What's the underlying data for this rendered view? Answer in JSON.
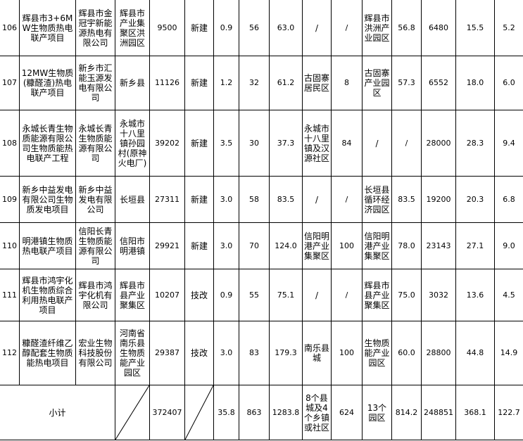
{
  "rows": [
    {
      "no": "106",
      "name": "辉县市3+6MW生物质热电联产项目",
      "company": "辉县市金冠宇新能源热电有限公司",
      "location": "辉县市产业集聚区洪洲园区",
      "c4": "9500",
      "type": "新建",
      "c6": "0.9",
      "c7": "56",
      "c8": "63.0",
      "c9": "/",
      "c10": "/",
      "c11": "辉县市洪洲产业园区",
      "c12": "56.8",
      "c13": "6480",
      "c14": "15.5",
      "c15": "5.2"
    },
    {
      "no": "107",
      "name": "12MW生物质(糠醛渣)热电联产项目",
      "company": "新乡市汇能玉源发电有限公司",
      "location": "新乡县",
      "c4": "11126",
      "type": "新建",
      "c6": "1.2",
      "c7": "32",
      "c8": "61.2",
      "c9": "古固寨居民区",
      "c10": "8",
      "c11": "古固寨产业园区",
      "c12": "57.3",
      "c13": "6552",
      "c14": "18.0",
      "c15": "6.0"
    },
    {
      "no": "108",
      "name": "永城长青生物质能源有限公司生物质能热电联产工程",
      "company": "永城长青生物质能源有限公司",
      "location": "永城市十八里镇孙园村(原神火电厂)",
      "c4": "39202",
      "type": "新建",
      "c6": "3.5",
      "c7": "30",
      "c8": "37.3",
      "c9": "永城市十八里镇及汉源社区",
      "c10": "84",
      "c11": "/",
      "c12": "/",
      "c13": "28000",
      "c14": "28.3",
      "c15": "9.4"
    },
    {
      "no": "109",
      "name": "新乡中益发电有限公司生物质发电项目",
      "company": "新乡中益发电有限公司",
      "location": "长垣县",
      "c4": "27311",
      "type": "新建",
      "c6": "3.0",
      "c7": "58",
      "c8": "83.5",
      "c9": "/",
      "c10": "/",
      "c11": "长垣县循环经济园区",
      "c12": "83.5",
      "c13": "19200",
      "c14": "20.3",
      "c15": "6.8"
    },
    {
      "no": "110",
      "name": "明港镇生物质热电联产项目",
      "company": "信阳长青生物质能源有限公司",
      "location": "信阳市明港镇",
      "c4": "29921",
      "type": "新建",
      "c6": "3.0",
      "c7": "70",
      "c8": "124.0",
      "c9": "信阳明港产业集聚区",
      "c10": "100",
      "c11": "信阳明港产业集聚区",
      "c12": "78.0",
      "c13": "23143",
      "c14": "27.1",
      "c15": "9.0"
    },
    {
      "no": "111",
      "name": "辉县市鸿宇化机生物质综合利用热电联产项目",
      "company": "辉县市鸿宇化机有限公司",
      "location": "辉县市县产业聚集区",
      "c4": "10207",
      "type": "技改",
      "c6": "0.9",
      "c7": "55",
      "c8": "75.1",
      "c9": "/",
      "c10": "/",
      "c11": "辉县市县产业聚集区",
      "c12": "75.0",
      "c13": "3032",
      "c14": "13.6",
      "c15": "4.5"
    },
    {
      "no": "112",
      "name": "糠醛渣纤维乙醇配套生物质能热电项目",
      "company": "宏业生物科技股份有限公司",
      "location": "河南省南乐县生物质能产业园区",
      "c4": "29387",
      "type": "技改",
      "c6": "3.0",
      "c7": "83",
      "c8": "179.3",
      "c9": "南乐县城",
      "c10": "100",
      "c11": "生物质能产业园区",
      "c12": "60.0",
      "c13": "28800",
      "c14": "44.8",
      "c15": "14.9"
    }
  ],
  "subtotal": {
    "label": "小计",
    "c4": "372407",
    "c6": "35.8",
    "c7": "863",
    "c8": "1283.8",
    "c9": "8个县城及4个乡镇或社区",
    "c10": "624",
    "c11": "13个园区",
    "c12": "814.2",
    "c13": "248851",
    "c14": "368.1",
    "c15": "122.7"
  }
}
